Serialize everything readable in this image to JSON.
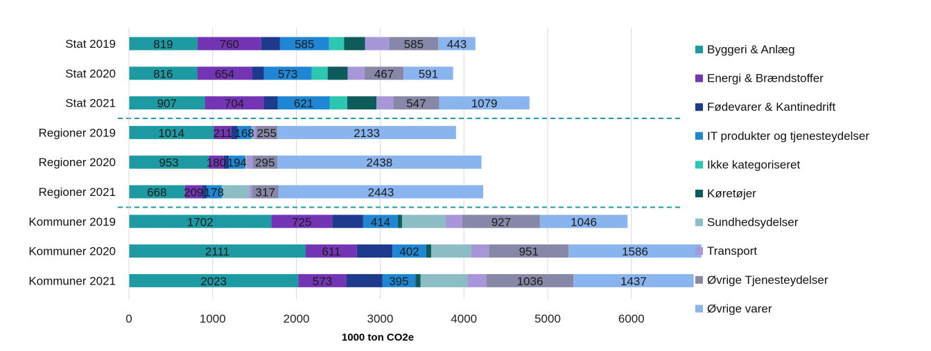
{
  "chart_data": {
    "type": "bar",
    "orientation": "horizontal",
    "stacked": true,
    "categories": [
      "Stat 2019",
      "Stat 2020",
      "Stat 2021",
      "Regioner 2019",
      "Regioner 2020",
      "Regioner 2021",
      "Kommuner 2019",
      "Kommuner 2020",
      "Kommuner 2021"
    ],
    "xlabel": "1000 ton CO2e",
    "xlim": [
      0,
      6500
    ],
    "xticks": [
      0,
      1000,
      2000,
      3000,
      4000,
      5000,
      6000
    ],
    "grid": "vertical",
    "legend_position": "right",
    "group_separators_after": [
      "Stat 2021",
      "Regioner 2021"
    ],
    "series": [
      {
        "name": "Byggeri & Anlæg",
        "color": "#1e9ba2",
        "values": [
          819,
          816,
          907,
          1014,
          953,
          668,
          1702,
          2111,
          2023
        ],
        "labels": [
          "819",
          "816",
          "907",
          "1014",
          "953",
          "668",
          "1702",
          "2111",
          "2023"
        ]
      },
      {
        "name": "Energi & Brændstoffer",
        "color": "#7435b5",
        "values": [
          760,
          654,
          704,
          211,
          180,
          209,
          725,
          611,
          573
        ],
        "labels": [
          "760",
          "654",
          "704",
          "211",
          "180",
          "209",
          "725",
          "611",
          "573"
        ]
      },
      {
        "name": "Fødevarer & Kantinedrift",
        "color": "#1d3a8c",
        "values": [
          225,
          140,
          165,
          70,
          60,
          50,
          370,
          425,
          430
        ],
        "labels": [
          "",
          "",
          "",
          "",
          "",
          "",
          "",
          "",
          ""
        ]
      },
      {
        "name": "IT produkter og tjenesteydelser",
        "color": "#1e86d3",
        "values": [
          585,
          573,
          621,
          168,
          194,
          178,
          414,
          402,
          395
        ],
        "labels": [
          "585",
          "573",
          "621",
          "168",
          "194",
          "178",
          "414",
          "402",
          "395"
        ]
      },
      {
        "name": "Ikke kategoriseret",
        "color": "#2bc7b0",
        "values": [
          180,
          190,
          210,
          0,
          0,
          10,
          0,
          0,
          0
        ],
        "labels": [
          "",
          "",
          "",
          "",
          "",
          "",
          "",
          "",
          ""
        ]
      },
      {
        "name": "Køretøjer",
        "color": "#0d5b5b",
        "values": [
          250,
          240,
          350,
          0,
          0,
          0,
          50,
          60,
          60
        ],
        "labels": [
          "",
          "",
          "",
          "",
          "",
          "",
          "",
          "",
          ""
        ]
      },
      {
        "name": "Sundhedsydelser",
        "color": "#8cbcc4",
        "values": [
          0,
          0,
          0,
          20,
          20,
          320,
          520,
          480,
          560
        ],
        "labels": [
          "",
          "",
          "",
          "",
          "",
          "",
          "",
          "",
          ""
        ]
      },
      {
        "name": "Transport",
        "color": "#a897d8",
        "values": [
          290,
          200,
          200,
          35,
          70,
          35,
          200,
          210,
          230
        ],
        "labels": [
          "",
          "",
          "",
          "",
          "",
          "",
          "",
          "",
          ""
        ]
      },
      {
        "name": "Øvrige Tjenesteydelser",
        "color": "#8787a8",
        "values": [
          585,
          467,
          547,
          255,
          295,
          317,
          927,
          951,
          1036
        ],
        "labels": [
          "585",
          "467",
          "547",
          "255",
          "295",
          "317",
          "927",
          "951",
          "1036"
        ]
      },
      {
        "name": "Øvrige varer",
        "color": "#8ab4ee",
        "values": [
          443,
          591,
          1079,
          2133,
          2438,
          2443,
          1046,
          1586,
          1437
        ],
        "labels": [
          "443",
          "591",
          "1079",
          "2133",
          "2438",
          "2443",
          "1046",
          "1586",
          "1437"
        ]
      }
    ]
  }
}
